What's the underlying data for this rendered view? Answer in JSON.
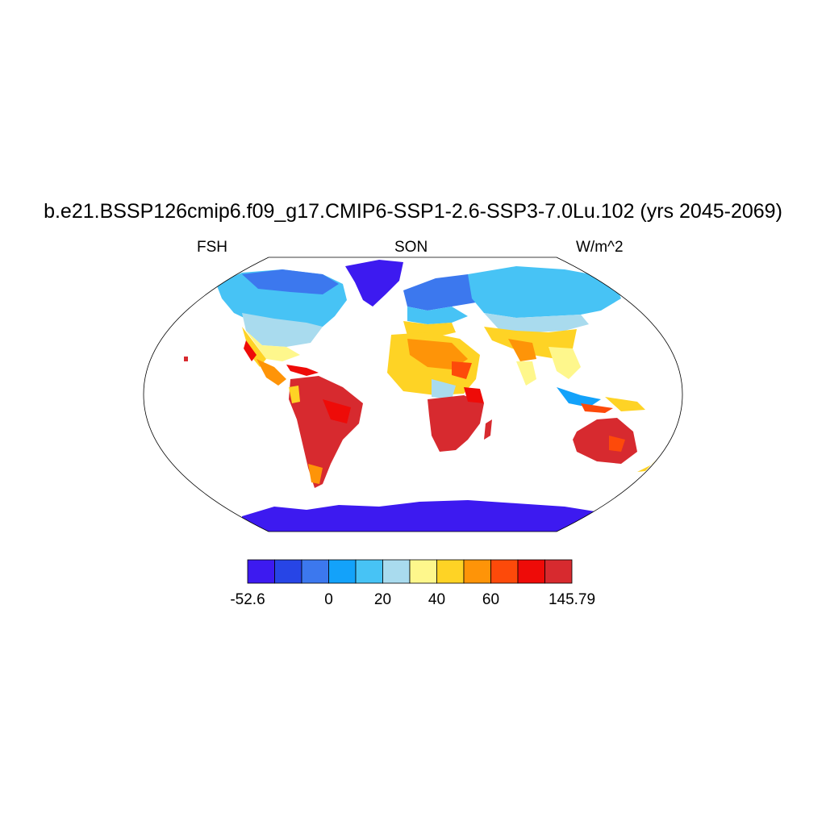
{
  "title": "b.e21.BSSP126cmip6.f09_g17.CMIP6-SSP1-2.6-SSP3-7.0Lu.102 (yrs 2045-2069)",
  "subtitle_left": "FSH",
  "subtitle_center": "SON",
  "subtitle_right": "W/m^2",
  "colorbar": {
    "colors": [
      "#3d1af0",
      "#2745e6",
      "#3c78ee",
      "#13a2fa",
      "#47c3f5",
      "#a9dbee",
      "#fef78c",
      "#fed325",
      "#fe9408",
      "#fd4a0a",
      "#ee0b08",
      "#d72a2f"
    ],
    "labels": [
      {
        "text": "-52.6",
        "index": 0
      },
      {
        "text": "0",
        "index": 3
      },
      {
        "text": "20",
        "index": 5
      },
      {
        "text": "40",
        "index": 7
      },
      {
        "text": "60",
        "index": 9
      },
      {
        "text": "145.79",
        "index": 12
      }
    ]
  }
}
